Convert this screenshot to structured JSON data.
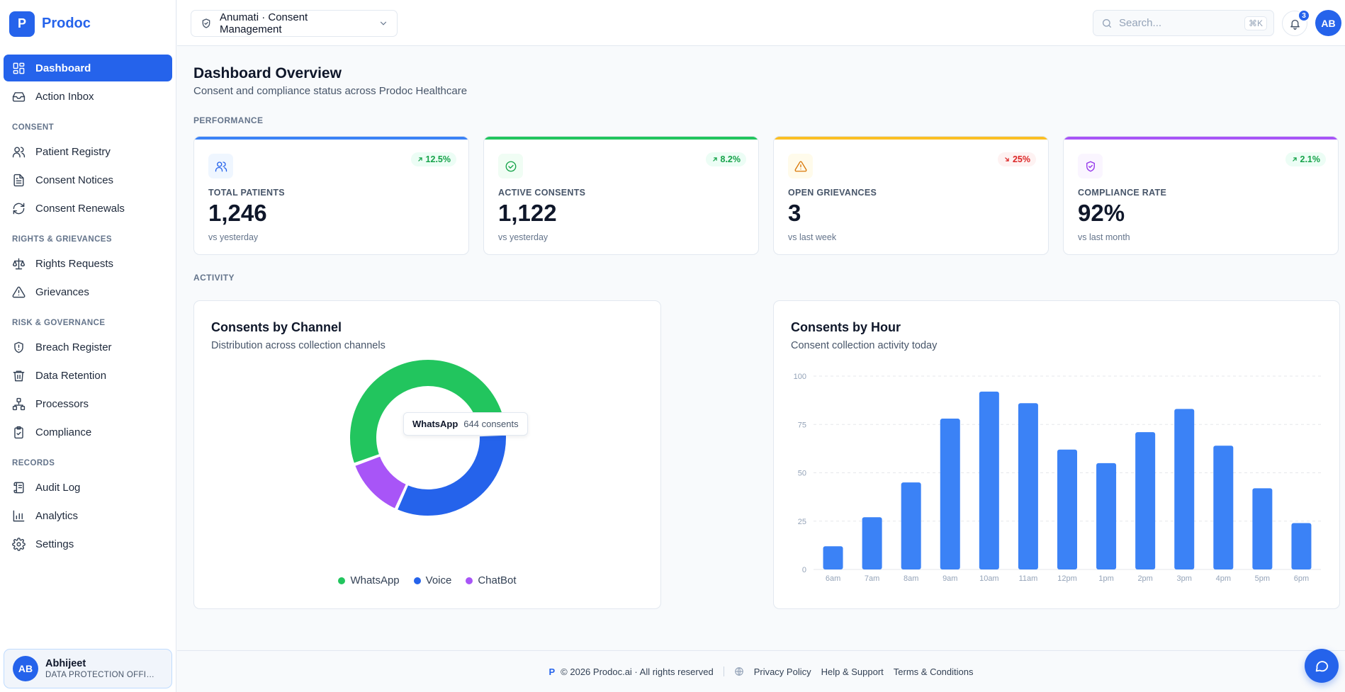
{
  "brand": {
    "logo_letter": "P",
    "name": "Prodoc"
  },
  "sidebar": {
    "items_top": [
      {
        "label": "Dashboard",
        "icon": "dashboard-icon",
        "active": true
      },
      {
        "label": "Action Inbox",
        "icon": "inbox-icon"
      }
    ],
    "sections": [
      {
        "title": "CONSENT",
        "items": [
          {
            "label": "Patient Registry",
            "icon": "users-icon"
          },
          {
            "label": "Consent Notices",
            "icon": "document-icon"
          },
          {
            "label": "Consent Renewals",
            "icon": "refresh-icon"
          }
        ]
      },
      {
        "title": "RIGHTS & GRIEVANCES",
        "items": [
          {
            "label": "Rights Requests",
            "icon": "scale-icon"
          },
          {
            "label": "Grievances",
            "icon": "warning-icon"
          }
        ]
      },
      {
        "title": "RISK & GOVERNANCE",
        "items": [
          {
            "label": "Breach Register",
            "icon": "shield-alert-icon"
          },
          {
            "label": "Data Retention",
            "icon": "trash-icon"
          },
          {
            "label": "Processors",
            "icon": "network-icon"
          },
          {
            "label": "Compliance",
            "icon": "clipboard-check-icon"
          }
        ]
      },
      {
        "title": "RECORDS",
        "items": [
          {
            "label": "Audit Log",
            "icon": "scroll-icon"
          },
          {
            "label": "Analytics",
            "icon": "bar-chart-icon"
          },
          {
            "label": "Settings",
            "icon": "gear-icon"
          }
        ]
      }
    ],
    "user": {
      "initials": "AB",
      "name": "Abhijeet",
      "role": "DATA PROTECTION OFFICER"
    }
  },
  "topbar": {
    "org_selector": "Anumati · Consent Management",
    "search_placeholder": "Search...",
    "search_shortcut": "⌘K",
    "notification_count": "3",
    "avatar_initials": "AB"
  },
  "page": {
    "title": "Dashboard Overview",
    "subtitle": "Consent and compliance status across Prodoc Healthcare",
    "performance_label": "PERFORMANCE",
    "activity_label": "ACTIVITY"
  },
  "stats": [
    {
      "label": "TOTAL PATIENTS",
      "value": "1,246",
      "foot": "vs yesterday",
      "trend": "12.5%",
      "direction": "up",
      "accent": "#3b82f6",
      "icon": "users-icon"
    },
    {
      "label": "ACTIVE CONSENTS",
      "value": "1,122",
      "foot": "vs yesterday",
      "trend": "8.2%",
      "direction": "up",
      "accent": "#22c55e",
      "icon": "check-circle-icon"
    },
    {
      "label": "OPEN GRIEVANCES",
      "value": "3",
      "foot": "vs last week",
      "trend": "25%",
      "direction": "down",
      "accent": "#fbbf24",
      "icon": "warning-icon"
    },
    {
      "label": "COMPLIANCE RATE",
      "value": "92%",
      "foot": "vs last month",
      "trend": "2.1%",
      "direction": "up",
      "accent": "#a855f7",
      "icon": "shield-check-icon"
    }
  ],
  "channel_card": {
    "title": "Consents by Channel",
    "subtitle": "Distribution across collection channels",
    "tooltip_label": "WhatsApp",
    "tooltip_value": "644 consents"
  },
  "hour_card": {
    "title": "Consents by Hour",
    "subtitle": "Consent collection activity today"
  },
  "chart_data": [
    {
      "type": "pie",
      "donut": true,
      "labels": [
        "WhatsApp",
        "Voice",
        "ChatBot"
      ],
      "values": [
        644,
        382,
        150
      ],
      "colors": [
        "#22c55e",
        "#2563eb",
        "#a855f7"
      ],
      "legend": "bottom"
    },
    {
      "type": "bar",
      "categories": [
        "6am",
        "7am",
        "8am",
        "9am",
        "10am",
        "11am",
        "12pm",
        "1pm",
        "2pm",
        "3pm",
        "4pm",
        "5pm",
        "6pm"
      ],
      "values": [
        12,
        27,
        45,
        78,
        92,
        86,
        62,
        55,
        71,
        83,
        64,
        42,
        24
      ],
      "yticks": [
        0,
        25,
        50,
        75,
        100
      ],
      "ylim": [
        0,
        100
      ],
      "color": "#3b82f6",
      "grid": true
    }
  ],
  "footer": {
    "logo_letter": "P",
    "copyright": "© 2026 Prodoc.ai · All rights reserved",
    "links": [
      "Privacy Policy",
      "Help & Support",
      "Terms & Conditions"
    ]
  }
}
